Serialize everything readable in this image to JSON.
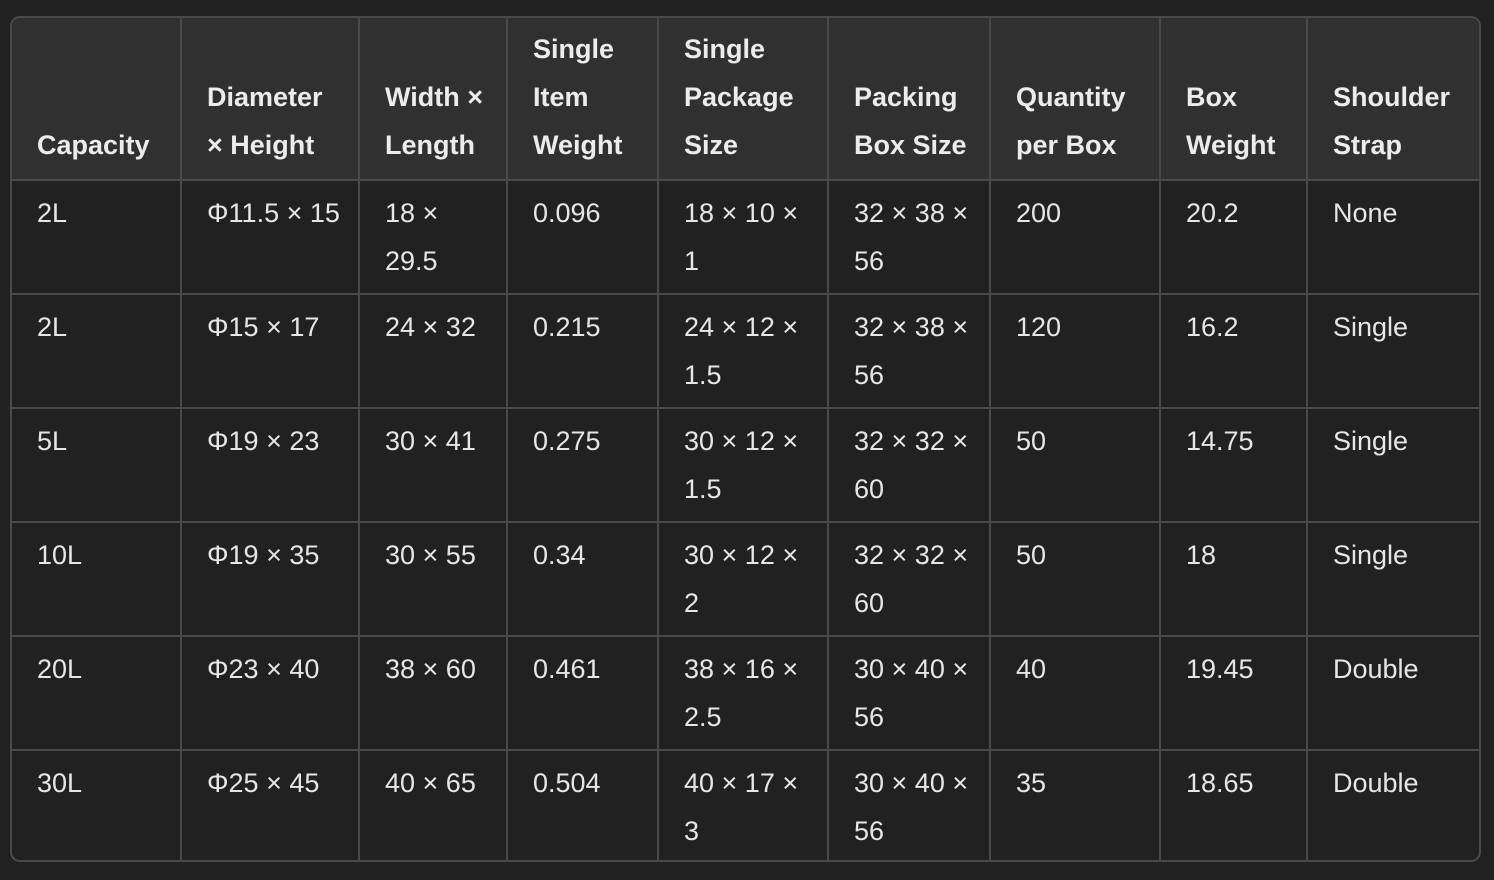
{
  "table": {
    "columns": [
      "Capacity",
      "Diameter × Height",
      "Width × Length",
      "Single Item Weight",
      "Single Package Size",
      "Packing Box Size",
      "Quantity per Box",
      "Box Weight",
      "Shoulder Strap"
    ],
    "rows": [
      [
        "2L",
        "Φ11.5 × 15",
        "18 × 29.5",
        "0.096",
        "18 × 10 × 1",
        "32 × 38 × 56",
        "200",
        "20.2",
        "None"
      ],
      [
        "2L",
        "Φ15 × 17",
        "24 × 32",
        "0.215",
        "24 × 12 × 1.5",
        "32 × 38 × 56",
        "120",
        "16.2",
        "Single"
      ],
      [
        "5L",
        "Φ19 × 23",
        "30 × 41",
        "0.275",
        "30 × 12 × 1.5",
        "32 × 32 × 60",
        "50",
        "14.75",
        "Single"
      ],
      [
        "10L",
        "Φ19 × 35",
        "30 × 55",
        "0.34",
        "30 × 12 × 2",
        "32 × 32 × 60",
        "50",
        "18",
        "Single"
      ],
      [
        "20L",
        "Φ23 × 40",
        "38 × 60",
        "0.461",
        "38 × 16 × 2.5",
        "30 × 40 × 56",
        "40",
        "19.45",
        "Double"
      ],
      [
        "30L",
        "Φ25 × 45",
        "40 × 65",
        "0.504",
        "40 × 17 × 3",
        "30 × 40 × 56",
        "35",
        "18.65",
        "Double"
      ]
    ]
  }
}
